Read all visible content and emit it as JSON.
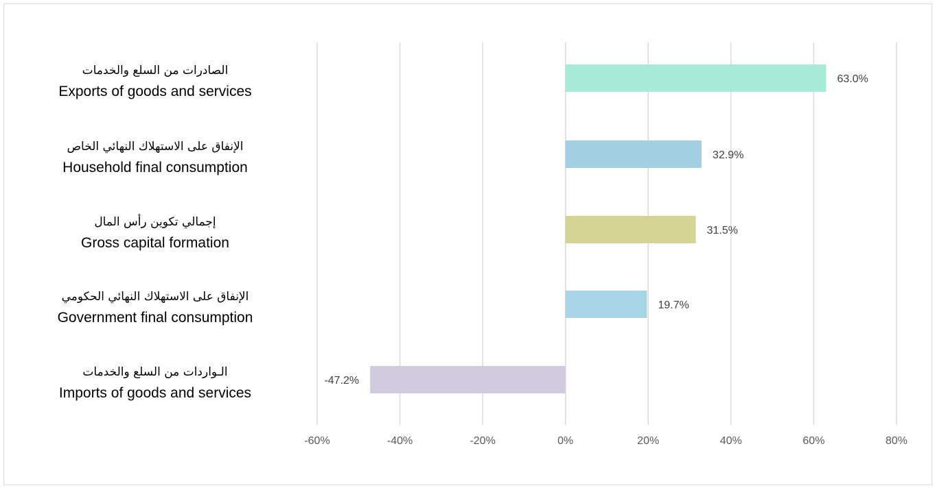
{
  "chart_data": {
    "type": "bar",
    "orientation": "horizontal",
    "categories": [
      {
        "ar": "الصادرات من السلع والخدمات",
        "en": "Exports of goods and services"
      },
      {
        "ar": "الإنفاق على الاستهلاك النهائي الخاص",
        "en": "Household final consumption"
      },
      {
        "ar": "إجمالي تكوين رأس المال",
        "en": "Gross capital formation"
      },
      {
        "ar": "الإنفاق على الاستهلاك النهائي الحكومي",
        "en": "Government final consumption"
      },
      {
        "ar": "الـواردات من السلع والخدمات",
        "en": "Imports of goods and services"
      }
    ],
    "values": [
      63.0,
      32.9,
      31.5,
      19.7,
      -47.2
    ],
    "data_labels": [
      "63.0%",
      "32.9%",
      "31.5%",
      "19.7%",
      "-47.2%"
    ],
    "colors": [
      "#a8ead8",
      "#a3cfe2",
      "#d4d494",
      "#a8d5e5",
      "#d1cade"
    ],
    "xlim": [
      -60,
      80
    ],
    "xticks": [
      -60,
      -40,
      -20,
      0,
      20,
      40,
      60,
      80
    ],
    "xtick_labels": [
      "-60%",
      "-40%",
      "-20%",
      "0%",
      "20%",
      "40%",
      "60%",
      "80%"
    ],
    "grid": true,
    "legend": "none"
  }
}
